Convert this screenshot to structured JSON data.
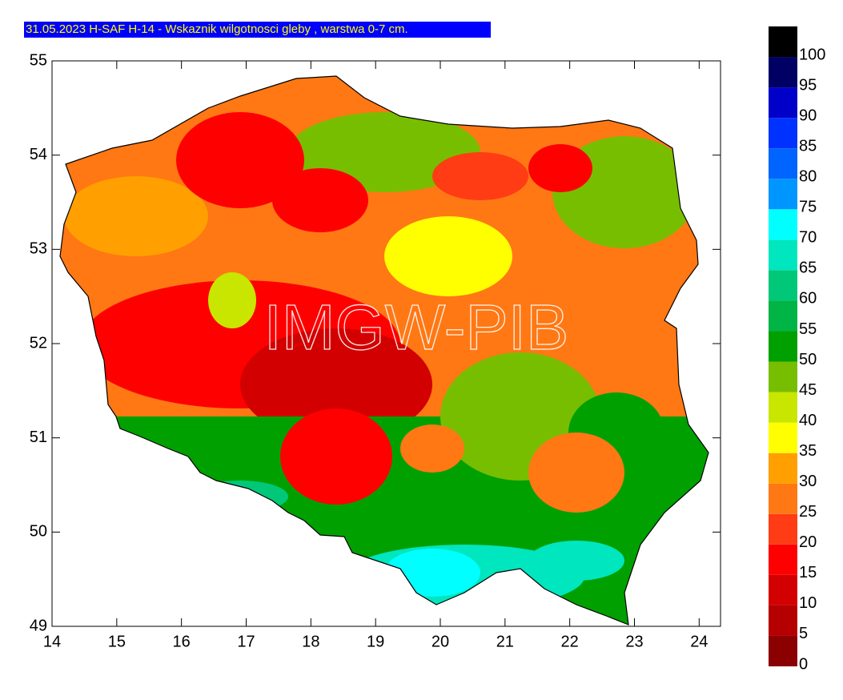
{
  "title": "31.05.2023 H-SAF H-14 - Wskaznik wilgotnosci gleby , warstwa 0-7 cm.",
  "watermark": "IMGW-PIB",
  "map": {
    "xlim": [
      14,
      24.33
    ],
    "ylim": [
      49,
      55
    ],
    "xticks": [
      14,
      15,
      16,
      17,
      18,
      19,
      20,
      21,
      22,
      23,
      24
    ],
    "yticks": [
      49,
      50,
      51,
      52,
      53,
      54,
      55
    ]
  },
  "legend": {
    "levels": [
      0,
      5,
      10,
      15,
      20,
      25,
      30,
      35,
      40,
      45,
      50,
      55,
      60,
      65,
      70,
      75,
      80,
      85,
      90,
      95,
      100
    ],
    "colors": [
      "#8b0000",
      "#b40000",
      "#d20000",
      "#ff0000",
      "#ff3c14",
      "#ff7814",
      "#ffa000",
      "#ffff00",
      "#c8e600",
      "#78be00",
      "#00a000",
      "#00b446",
      "#00c878",
      "#00e6be",
      "#00ffff",
      "#0096ff",
      "#0064ff",
      "#0032ff",
      "#0000c8",
      "#000064",
      "#000000"
    ]
  }
}
